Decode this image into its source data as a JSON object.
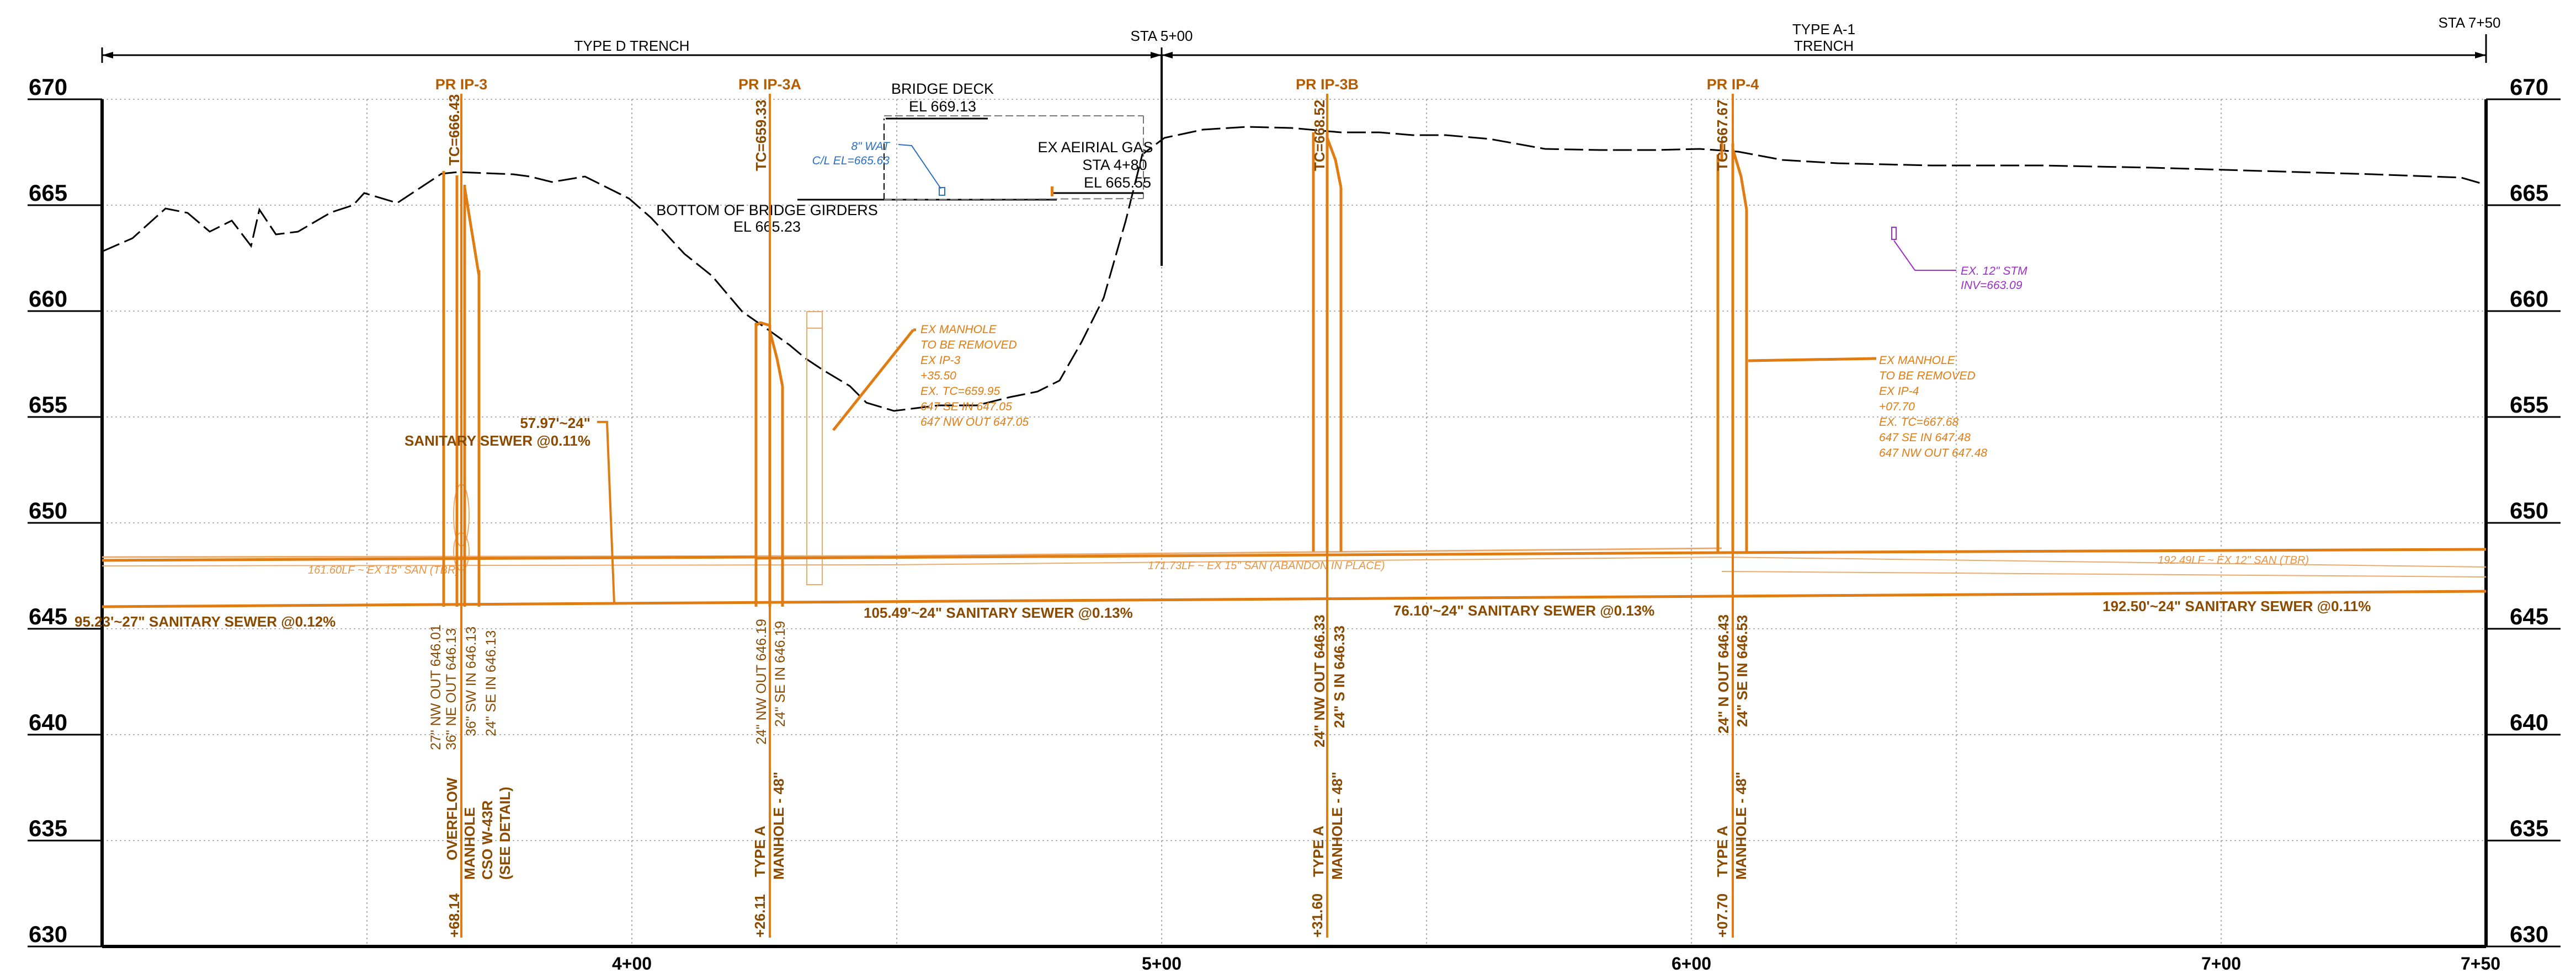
{
  "elevations": [
    "670",
    "665",
    "660",
    "655",
    "650",
    "645",
    "640",
    "635",
    "630"
  ],
  "stations": [
    "4+00",
    "5+00",
    "6+00",
    "7+00",
    "7+50"
  ],
  "header": {
    "trench_d": "TYPE D TRENCH",
    "sta_500": "STA 5+00",
    "trench_a1_l1": "TYPE A-1",
    "trench_a1_l2": "TRENCH",
    "sta_750": "STA 7+50"
  },
  "manholes": [
    {
      "name": "PR IP-3",
      "tc": "TC=666.43",
      "inverts": [
        "27\" NW OUT 646.01",
        "36\" NE OUT 646.13",
        "36\" SW IN 646.13",
        "24\" SE IN 646.13"
      ],
      "offset": "+68.14",
      "type": [
        "OVERFLOW",
        "MANHOLE",
        "CSO W-43R",
        "(SEE DETAIL)"
      ]
    },
    {
      "name": "PR IP-3A",
      "tc": "TC=659.33",
      "inverts": [
        "24\" NW OUT 646.19",
        "24\" SE IN 646.19"
      ],
      "offset": "+26.11",
      "type": [
        "TYPE A",
        "MANHOLE - 48\""
      ]
    },
    {
      "name": "PR IP-3B",
      "tc": "TC=668.52",
      "inverts": [
        "24\" NW OUT 646.33",
        "24\" S IN 646.33"
      ],
      "offset": "+31.60",
      "type": [
        "TYPE A",
        "MANHOLE - 48\""
      ]
    },
    {
      "name": "PR IP-4",
      "tc": "TC=667.67",
      "inverts": [
        "24\" N OUT 646.43",
        "24\" SE IN 646.53"
      ],
      "offset": "+07.70",
      "type": [
        "TYPE A",
        "MANHOLE - 48\""
      ]
    }
  ],
  "bridge": {
    "deck_l1": "BRIDGE DECK",
    "deck_l2": "EL 669.13",
    "girders_l1": "BOTTOM OF BRIDGE GIRDERS",
    "girders_l2": "EL 665.23"
  },
  "gas": {
    "l1": "EX AEIRIAL GAS",
    "l2": "STA 4+80",
    "l3": "EL 665.55"
  },
  "water": {
    "l1": "8\" WAT",
    "l2": "C/L EL=665.63"
  },
  "storm": {
    "l1": "EX. 12\" STM",
    "l2": "INV=663.09"
  },
  "ex_manhole_3": [
    "EX MANHOLE",
    "TO BE REMOVED",
    "EX IP-3",
    "+35.50",
    "EX. TC=659.95",
    "647 SE IN 647.05",
    "647 NW OUT 647.05"
  ],
  "ex_manhole_4": [
    "EX MANHOLE",
    "TO BE REMOVED",
    "EX IP-4",
    "+07.70",
    "EX. TC=667.68",
    "647 SE IN 647.48",
    "647 NW OUT 647.48"
  ],
  "pipes": {
    "sewer_57": "57.97'~24\"",
    "sewer_57_b": "SANITARY SEWER @0.11%",
    "sewer_95": "95.23'~27\" SANITARY SEWER @0.12%",
    "sewer_105": "105.49'~24\" SANITARY SEWER @0.13%",
    "sewer_76": "76.10'~24\" SANITARY SEWER @0.13%",
    "sewer_192": "192.50'~24\" SANITARY SEWER @0.11%"
  },
  "existing": {
    "ex_161": "161.60LF ~ EX 15\" SAN (TBR)",
    "ex_171": "171.73LF ~ EX 15\" SAN (ABANDON IN PLACE)",
    "ex_192": "192.49LF ~ EX 12\" SAN (TBR)"
  },
  "colors": {
    "proposed": "#e07c12",
    "proposed_text": "#8a4a00",
    "existing": "#ecab6c",
    "grid": "#9a9a9a",
    "water": "#2a6fc4",
    "storm": "#9b2fc7"
  }
}
